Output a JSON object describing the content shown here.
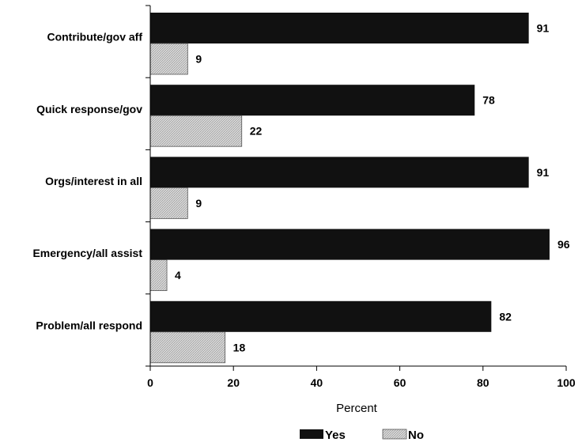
{
  "chart_data": {
    "type": "bar",
    "orientation": "horizontal",
    "categories": [
      "Contribute/gov aff",
      "Quick response/gov",
      "Orgs/interest in all",
      "Emergency/all assist",
      "Problem/all respond"
    ],
    "series": [
      {
        "name": "Yes",
        "values": [
          91,
          78,
          91,
          96,
          82
        ],
        "color": "#111111"
      },
      {
        "name": "No",
        "values": [
          9,
          22,
          9,
          4,
          18
        ],
        "color": "#c8c8c8"
      }
    ],
    "xlabel": "Percent",
    "ylabel": "",
    "title": "",
    "xlim": [
      0,
      100
    ],
    "xticks": [
      "0",
      "20",
      "40",
      "60",
      "80",
      "100"
    ],
    "grid": false,
    "legend_position": "bottom"
  }
}
